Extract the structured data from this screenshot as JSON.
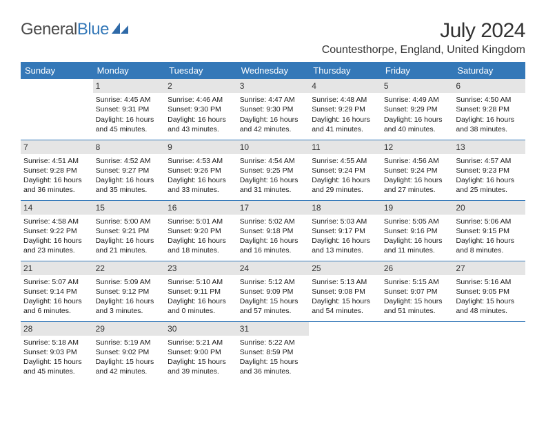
{
  "brand": {
    "part1": "General",
    "part2": "Blue"
  },
  "title": "July 2024",
  "location": "Countesthorpe, England, United Kingdom",
  "weekday_headers": [
    "Sunday",
    "Monday",
    "Tuesday",
    "Wednesday",
    "Thursday",
    "Friday",
    "Saturday"
  ],
  "header_bg": "#3478b8",
  "header_fg": "#ffffff",
  "cell_border": "#3478b8",
  "daynum_bg": "#e5e5e5",
  "weeks": [
    [
      null,
      {
        "n": "1",
        "sr": "Sunrise: 4:45 AM",
        "ss": "Sunset: 9:31 PM",
        "dl": "Daylight: 16 hours and 45 minutes."
      },
      {
        "n": "2",
        "sr": "Sunrise: 4:46 AM",
        "ss": "Sunset: 9:30 PM",
        "dl": "Daylight: 16 hours and 43 minutes."
      },
      {
        "n": "3",
        "sr": "Sunrise: 4:47 AM",
        "ss": "Sunset: 9:30 PM",
        "dl": "Daylight: 16 hours and 42 minutes."
      },
      {
        "n": "4",
        "sr": "Sunrise: 4:48 AM",
        "ss": "Sunset: 9:29 PM",
        "dl": "Daylight: 16 hours and 41 minutes."
      },
      {
        "n": "5",
        "sr": "Sunrise: 4:49 AM",
        "ss": "Sunset: 9:29 PM",
        "dl": "Daylight: 16 hours and 40 minutes."
      },
      {
        "n": "6",
        "sr": "Sunrise: 4:50 AM",
        "ss": "Sunset: 9:28 PM",
        "dl": "Daylight: 16 hours and 38 minutes."
      }
    ],
    [
      {
        "n": "7",
        "sr": "Sunrise: 4:51 AM",
        "ss": "Sunset: 9:28 PM",
        "dl": "Daylight: 16 hours and 36 minutes."
      },
      {
        "n": "8",
        "sr": "Sunrise: 4:52 AM",
        "ss": "Sunset: 9:27 PM",
        "dl": "Daylight: 16 hours and 35 minutes."
      },
      {
        "n": "9",
        "sr": "Sunrise: 4:53 AM",
        "ss": "Sunset: 9:26 PM",
        "dl": "Daylight: 16 hours and 33 minutes."
      },
      {
        "n": "10",
        "sr": "Sunrise: 4:54 AM",
        "ss": "Sunset: 9:25 PM",
        "dl": "Daylight: 16 hours and 31 minutes."
      },
      {
        "n": "11",
        "sr": "Sunrise: 4:55 AM",
        "ss": "Sunset: 9:24 PM",
        "dl": "Daylight: 16 hours and 29 minutes."
      },
      {
        "n": "12",
        "sr": "Sunrise: 4:56 AM",
        "ss": "Sunset: 9:24 PM",
        "dl": "Daylight: 16 hours and 27 minutes."
      },
      {
        "n": "13",
        "sr": "Sunrise: 4:57 AM",
        "ss": "Sunset: 9:23 PM",
        "dl": "Daylight: 16 hours and 25 minutes."
      }
    ],
    [
      {
        "n": "14",
        "sr": "Sunrise: 4:58 AM",
        "ss": "Sunset: 9:22 PM",
        "dl": "Daylight: 16 hours and 23 minutes."
      },
      {
        "n": "15",
        "sr": "Sunrise: 5:00 AM",
        "ss": "Sunset: 9:21 PM",
        "dl": "Daylight: 16 hours and 21 minutes."
      },
      {
        "n": "16",
        "sr": "Sunrise: 5:01 AM",
        "ss": "Sunset: 9:20 PM",
        "dl": "Daylight: 16 hours and 18 minutes."
      },
      {
        "n": "17",
        "sr": "Sunrise: 5:02 AM",
        "ss": "Sunset: 9:18 PM",
        "dl": "Daylight: 16 hours and 16 minutes."
      },
      {
        "n": "18",
        "sr": "Sunrise: 5:03 AM",
        "ss": "Sunset: 9:17 PM",
        "dl": "Daylight: 16 hours and 13 minutes."
      },
      {
        "n": "19",
        "sr": "Sunrise: 5:05 AM",
        "ss": "Sunset: 9:16 PM",
        "dl": "Daylight: 16 hours and 11 minutes."
      },
      {
        "n": "20",
        "sr": "Sunrise: 5:06 AM",
        "ss": "Sunset: 9:15 PM",
        "dl": "Daylight: 16 hours and 8 minutes."
      }
    ],
    [
      {
        "n": "21",
        "sr": "Sunrise: 5:07 AM",
        "ss": "Sunset: 9:14 PM",
        "dl": "Daylight: 16 hours and 6 minutes."
      },
      {
        "n": "22",
        "sr": "Sunrise: 5:09 AM",
        "ss": "Sunset: 9:12 PM",
        "dl": "Daylight: 16 hours and 3 minutes."
      },
      {
        "n": "23",
        "sr": "Sunrise: 5:10 AM",
        "ss": "Sunset: 9:11 PM",
        "dl": "Daylight: 16 hours and 0 minutes."
      },
      {
        "n": "24",
        "sr": "Sunrise: 5:12 AM",
        "ss": "Sunset: 9:09 PM",
        "dl": "Daylight: 15 hours and 57 minutes."
      },
      {
        "n": "25",
        "sr": "Sunrise: 5:13 AM",
        "ss": "Sunset: 9:08 PM",
        "dl": "Daylight: 15 hours and 54 minutes."
      },
      {
        "n": "26",
        "sr": "Sunrise: 5:15 AM",
        "ss": "Sunset: 9:07 PM",
        "dl": "Daylight: 15 hours and 51 minutes."
      },
      {
        "n": "27",
        "sr": "Sunrise: 5:16 AM",
        "ss": "Sunset: 9:05 PM",
        "dl": "Daylight: 15 hours and 48 minutes."
      }
    ],
    [
      {
        "n": "28",
        "sr": "Sunrise: 5:18 AM",
        "ss": "Sunset: 9:03 PM",
        "dl": "Daylight: 15 hours and 45 minutes."
      },
      {
        "n": "29",
        "sr": "Sunrise: 5:19 AM",
        "ss": "Sunset: 9:02 PM",
        "dl": "Daylight: 15 hours and 42 minutes."
      },
      {
        "n": "30",
        "sr": "Sunrise: 5:21 AM",
        "ss": "Sunset: 9:00 PM",
        "dl": "Daylight: 15 hours and 39 minutes."
      },
      {
        "n": "31",
        "sr": "Sunrise: 5:22 AM",
        "ss": "Sunset: 8:59 PM",
        "dl": "Daylight: 15 hours and 36 minutes."
      },
      null,
      null,
      null
    ]
  ]
}
